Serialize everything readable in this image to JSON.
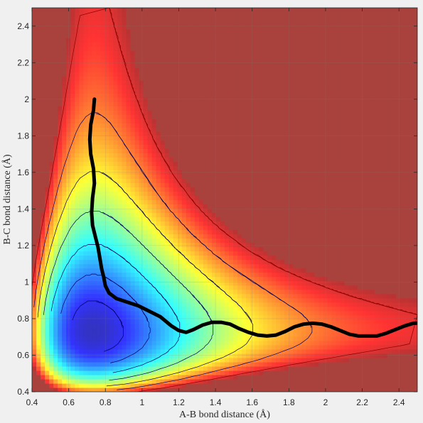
{
  "chart_data": {
    "type": "heatmap",
    "title": "",
    "xlabel": "A-B bond distance (Å)",
    "ylabel": "B-C bond distance (Å)",
    "xlim": [
      0.4,
      2.5
    ],
    "ylim": [
      0.4,
      2.5
    ],
    "xticks": [
      0.4,
      0.6,
      0.8,
      1,
      1.2,
      1.4,
      1.6,
      1.8,
      2,
      2.2,
      2.4
    ],
    "yticks": [
      0.4,
      0.6,
      0.8,
      1,
      1.2,
      1.4,
      1.6,
      1.8,
      2,
      2.2,
      2.4
    ],
    "xtick_labels": [
      "0.4",
      "0.6",
      "0.8",
      "1",
      "1.2",
      "1.4",
      "1.6",
      "1.8",
      "2",
      "2.2",
      "2.4"
    ],
    "ytick_labels": [
      "0.4",
      "0.6",
      "0.8",
      "1",
      "1.2",
      "1.4",
      "1.6",
      "1.8",
      "2",
      "2.2",
      "2.4"
    ],
    "grid": true,
    "colormap": "jet",
    "saturated_color": "#a9423d",
    "contour_color": "#000033",
    "surface": {
      "description_values": "potential energy surface; minimum valley along the channels",
      "well_depth_reactant": 0.74,
      "well_depth_product": 0.74
    },
    "trajectory": {
      "color": "#000000",
      "x": [
        0.74,
        0.735,
        0.72,
        0.715,
        0.72,
        0.735,
        0.74,
        0.73,
        0.725,
        0.73,
        0.745,
        0.76,
        0.77,
        0.78,
        0.79,
        0.8,
        0.82,
        0.86,
        0.92,
        0.98,
        1.04,
        1.1,
        1.16,
        1.2,
        1.24,
        1.28,
        1.33,
        1.38,
        1.43,
        1.48,
        1.53,
        1.58,
        1.63,
        1.68,
        1.73,
        1.78,
        1.83,
        1.88,
        1.93,
        1.98,
        2.03,
        2.08,
        2.13,
        2.18,
        2.23,
        2.28,
        2.33,
        2.38,
        2.43,
        2.48,
        2.5
      ],
      "y": [
        2.0,
        1.94,
        1.86,
        1.78,
        1.7,
        1.62,
        1.54,
        1.46,
        1.38,
        1.31,
        1.25,
        1.19,
        1.13,
        1.07,
        1.03,
        0.98,
        0.94,
        0.91,
        0.89,
        0.87,
        0.84,
        0.81,
        0.76,
        0.735,
        0.725,
        0.74,
        0.765,
        0.78,
        0.78,
        0.77,
        0.745,
        0.725,
        0.71,
        0.705,
        0.71,
        0.73,
        0.755,
        0.77,
        0.775,
        0.77,
        0.755,
        0.735,
        0.715,
        0.705,
        0.705,
        0.705,
        0.72,
        0.74,
        0.76,
        0.775,
        0.775
      ]
    }
  }
}
